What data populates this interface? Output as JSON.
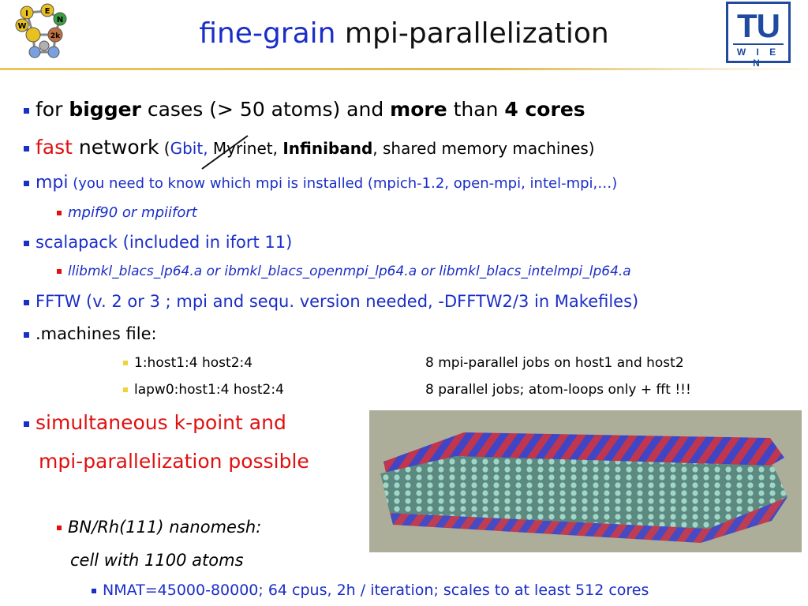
{
  "logo_left": {
    "letters": [
      "I",
      "E",
      "N",
      "W",
      "2k"
    ],
    "colors": [
      "#e8c020",
      "#2a6ad0",
      "#3aa040",
      "#c05020",
      "#a0a0a0"
    ]
  },
  "logo_right": {
    "top": "TU",
    "bottom": "W I E N"
  },
  "title": {
    "part1": "fine-grain",
    "part2": " mpi-parallelization"
  },
  "bullets": {
    "b1": {
      "t1": "for ",
      "t2": "bigger",
      "t3": " cases (> 50 atoms) and ",
      "t4": "more",
      "t5": " than ",
      "t6": "4 cores"
    },
    "b2": {
      "fast": "fast",
      "network": " network",
      "open": " (",
      "gbit": "Gbit,",
      "myrinet": " Myrinet, ",
      "infiniband": "Infiniband",
      "rest": ", shared memory machines)"
    },
    "b3": {
      "mpi": "mpi",
      "rest": " (you need to know which mpi is installed (mpich-1.2, open-mpi, intel-mpi,…)"
    },
    "b3a": "mpif90  or mpiifort",
    "b4": "scalapack (included in ifort 11)",
    "b4a": "llibmkl_blacs_lp64.a or ibmkl_blacs_openmpi_lp64.a  or libmkl_blacs_intelmpi_lp64.a",
    "b5": "FFTW (v. 2 or 3 ; mpi and sequ. version needed, -DFFTW2/3 in Makefiles)",
    "b6": ".machines file:",
    "m1": {
      "left": "1:host1:4 host2:4",
      "right": "8 mpi-parallel jobs on host1 and host2"
    },
    "m2": {
      "left": "lapw0:host1:4  host2:4",
      "right": "8 parallel jobs;  atom-loops only + fft !!!"
    },
    "b7": {
      "line1": "simultaneous k-point and",
      "line2": "mpi-parallelization possible"
    },
    "b7a": {
      "line1": "BN/Rh(111)  nanomesh:",
      "line2": "cell with 1100 atoms"
    },
    "b7b": "NMAT=45000-80000;  64 cpus, 2h / iteration; scales to at least 512 cores"
  },
  "colors": {
    "blue": "#1a2ec8",
    "red": "#e01010",
    "bullet_yellow": "#f1d23a",
    "molecule_bg": "#adae99"
  }
}
